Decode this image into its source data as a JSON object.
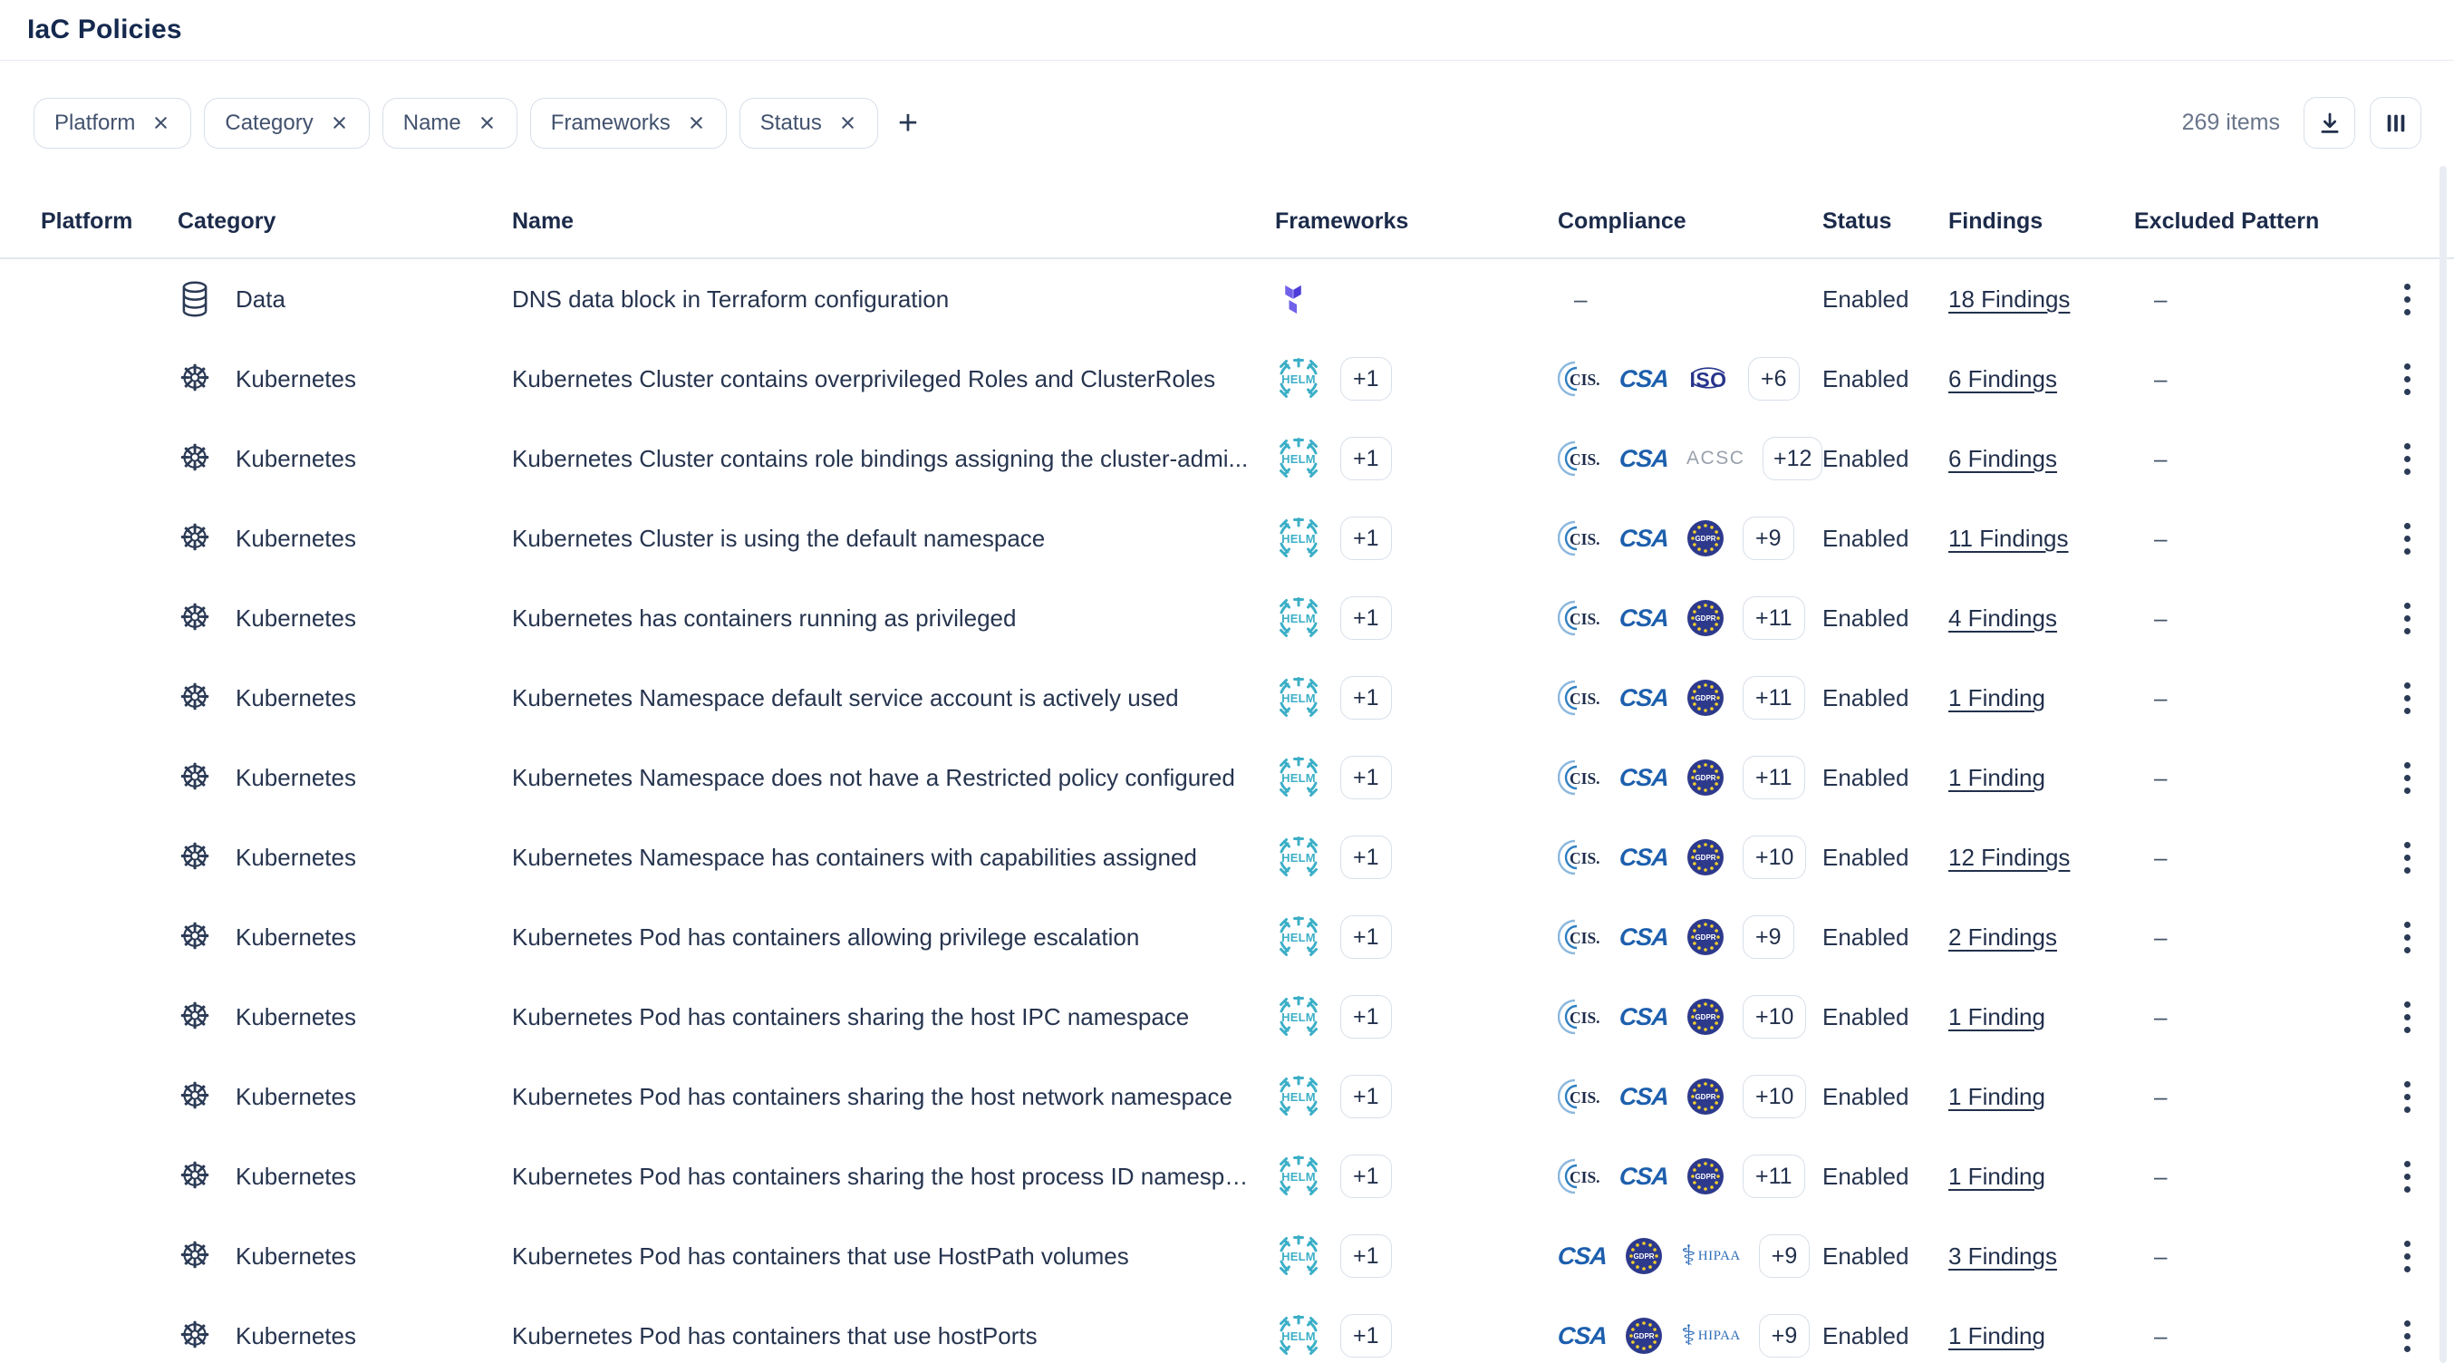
{
  "page": {
    "title": "IaC Policies"
  },
  "toolbar": {
    "filters": [
      {
        "label": "Platform"
      },
      {
        "label": "Category"
      },
      {
        "label": "Name"
      },
      {
        "label": "Frameworks"
      },
      {
        "label": "Status"
      }
    ],
    "add_filter_label": "+",
    "items_count": "269 items",
    "actions": [
      "download-icon",
      "columns-icon"
    ]
  },
  "table": {
    "columns": [
      "Platform",
      "Category",
      "Name",
      "Frameworks",
      "Compliance",
      "Status",
      "Findings",
      "Excluded Pattern"
    ],
    "rows": [
      {
        "platform": "",
        "category": {
          "icon": "database",
          "label": "Data"
        },
        "name": "DNS data block in Terraform configuration",
        "frameworks": {
          "icons": [
            "terraform"
          ],
          "more": null
        },
        "compliance": {
          "icons": [],
          "more": null,
          "empty": "–"
        },
        "status": "Enabled",
        "findings": "18 Findings",
        "excluded": "–"
      },
      {
        "platform": "",
        "category": {
          "icon": "kubernetes",
          "label": "Kubernetes"
        },
        "name": "Kubernetes Cluster contains overprivileged Roles and ClusterRoles",
        "frameworks": {
          "icons": [
            "helm"
          ],
          "more": "+1"
        },
        "compliance": {
          "icons": [
            "cis",
            "csa",
            "iso"
          ],
          "more": "+6"
        },
        "status": "Enabled",
        "findings": "6 Findings",
        "excluded": "–"
      },
      {
        "platform": "",
        "category": {
          "icon": "kubernetes",
          "label": "Kubernetes"
        },
        "name": "Kubernetes Cluster contains role bindings assigning the cluster-admi...",
        "frameworks": {
          "icons": [
            "helm"
          ],
          "more": "+1"
        },
        "compliance": {
          "icons": [
            "cis",
            "csa",
            "acsc"
          ],
          "more": "+12"
        },
        "status": "Enabled",
        "findings": "6 Findings",
        "excluded": "–"
      },
      {
        "platform": "",
        "category": {
          "icon": "kubernetes",
          "label": "Kubernetes"
        },
        "name": "Kubernetes Cluster is using the default namespace",
        "frameworks": {
          "icons": [
            "helm"
          ],
          "more": "+1"
        },
        "compliance": {
          "icons": [
            "cis",
            "csa",
            "gdpr"
          ],
          "more": "+9"
        },
        "status": "Enabled",
        "findings": "11 Findings",
        "excluded": "–"
      },
      {
        "platform": "",
        "category": {
          "icon": "kubernetes",
          "label": "Kubernetes"
        },
        "name": "Kubernetes has containers running as privileged",
        "frameworks": {
          "icons": [
            "helm"
          ],
          "more": "+1"
        },
        "compliance": {
          "icons": [
            "cis",
            "csa",
            "gdpr"
          ],
          "more": "+11"
        },
        "status": "Enabled",
        "findings": "4 Findings",
        "excluded": "–"
      },
      {
        "platform": "",
        "category": {
          "icon": "kubernetes",
          "label": "Kubernetes"
        },
        "name": "Kubernetes Namespace default service account is actively used",
        "frameworks": {
          "icons": [
            "helm"
          ],
          "more": "+1"
        },
        "compliance": {
          "icons": [
            "cis",
            "csa",
            "gdpr"
          ],
          "more": "+11"
        },
        "status": "Enabled",
        "findings": "1 Finding",
        "excluded": "–"
      },
      {
        "platform": "",
        "category": {
          "icon": "kubernetes",
          "label": "Kubernetes"
        },
        "name": "Kubernetes Namespace does not have a Restricted policy configured",
        "frameworks": {
          "icons": [
            "helm"
          ],
          "more": "+1"
        },
        "compliance": {
          "icons": [
            "cis",
            "csa",
            "gdpr"
          ],
          "more": "+11"
        },
        "status": "Enabled",
        "findings": "1 Finding",
        "excluded": "–"
      },
      {
        "platform": "",
        "category": {
          "icon": "kubernetes",
          "label": "Kubernetes"
        },
        "name": "Kubernetes Namespace has containers with capabilities assigned",
        "frameworks": {
          "icons": [
            "helm"
          ],
          "more": "+1"
        },
        "compliance": {
          "icons": [
            "cis",
            "csa",
            "gdpr"
          ],
          "more": "+10"
        },
        "status": "Enabled",
        "findings": "12 Findings",
        "excluded": "–"
      },
      {
        "platform": "",
        "category": {
          "icon": "kubernetes",
          "label": "Kubernetes"
        },
        "name": "Kubernetes Pod has containers allowing privilege escalation",
        "frameworks": {
          "icons": [
            "helm"
          ],
          "more": "+1"
        },
        "compliance": {
          "icons": [
            "cis",
            "csa",
            "gdpr"
          ],
          "more": "+9"
        },
        "status": "Enabled",
        "findings": "2 Findings",
        "excluded": "–"
      },
      {
        "platform": "",
        "category": {
          "icon": "kubernetes",
          "label": "Kubernetes"
        },
        "name": "Kubernetes Pod has containers sharing the host IPC namespace",
        "frameworks": {
          "icons": [
            "helm"
          ],
          "more": "+1"
        },
        "compliance": {
          "icons": [
            "cis",
            "csa",
            "gdpr"
          ],
          "more": "+10"
        },
        "status": "Enabled",
        "findings": "1 Finding",
        "excluded": "–"
      },
      {
        "platform": "",
        "category": {
          "icon": "kubernetes",
          "label": "Kubernetes"
        },
        "name": "Kubernetes Pod has containers sharing the host network namespace",
        "frameworks": {
          "icons": [
            "helm"
          ],
          "more": "+1"
        },
        "compliance": {
          "icons": [
            "cis",
            "csa",
            "gdpr"
          ],
          "more": "+10"
        },
        "status": "Enabled",
        "findings": "1 Finding",
        "excluded": "–"
      },
      {
        "platform": "",
        "category": {
          "icon": "kubernetes",
          "label": "Kubernetes"
        },
        "name": "Kubernetes Pod has containers sharing the host process ID namespace",
        "frameworks": {
          "icons": [
            "helm"
          ],
          "more": "+1"
        },
        "compliance": {
          "icons": [
            "cis",
            "csa",
            "gdpr"
          ],
          "more": "+11"
        },
        "status": "Enabled",
        "findings": "1 Finding",
        "excluded": "–"
      },
      {
        "platform": "",
        "category": {
          "icon": "kubernetes",
          "label": "Kubernetes"
        },
        "name": "Kubernetes Pod has containers that use HostPath volumes",
        "frameworks": {
          "icons": [
            "helm"
          ],
          "more": "+1"
        },
        "compliance": {
          "icons": [
            "csa",
            "gdpr",
            "hipaa"
          ],
          "more": "+9"
        },
        "status": "Enabled",
        "findings": "3 Findings",
        "excluded": "–"
      },
      {
        "platform": "",
        "category": {
          "icon": "kubernetes",
          "label": "Kubernetes"
        },
        "name": "Kubernetes Pod has containers that use hostPorts",
        "frameworks": {
          "icons": [
            "helm"
          ],
          "more": "+1"
        },
        "compliance": {
          "icons": [
            "csa",
            "gdpr",
            "hipaa"
          ],
          "more": "+9"
        },
        "status": "Enabled",
        "findings": "1 Finding",
        "excluded": "–"
      }
    ]
  },
  "colors": {
    "text_primary": "#22304c",
    "text_secondary": "#69758a",
    "border": "#d8dfe9",
    "divider": "#e7ebf1",
    "header_border": "#e2e7ef",
    "icon_dark": "#2b3a55",
    "terraform_light": "#6f61ea",
    "terraform_dark": "#4c3dd8",
    "helm_teal": "#3cafc7",
    "cis_outer": "#8cb8de",
    "cis_inner": "#2e7fc1",
    "csa_blue": "#1d5fad",
    "iso_navy": "#27348b",
    "acsc_gray": "#99a1ac",
    "gdpr_blue": "#2d3a8c",
    "gdpr_star": "#f5d02c",
    "hipaa_blue": "#2f6db8"
  }
}
